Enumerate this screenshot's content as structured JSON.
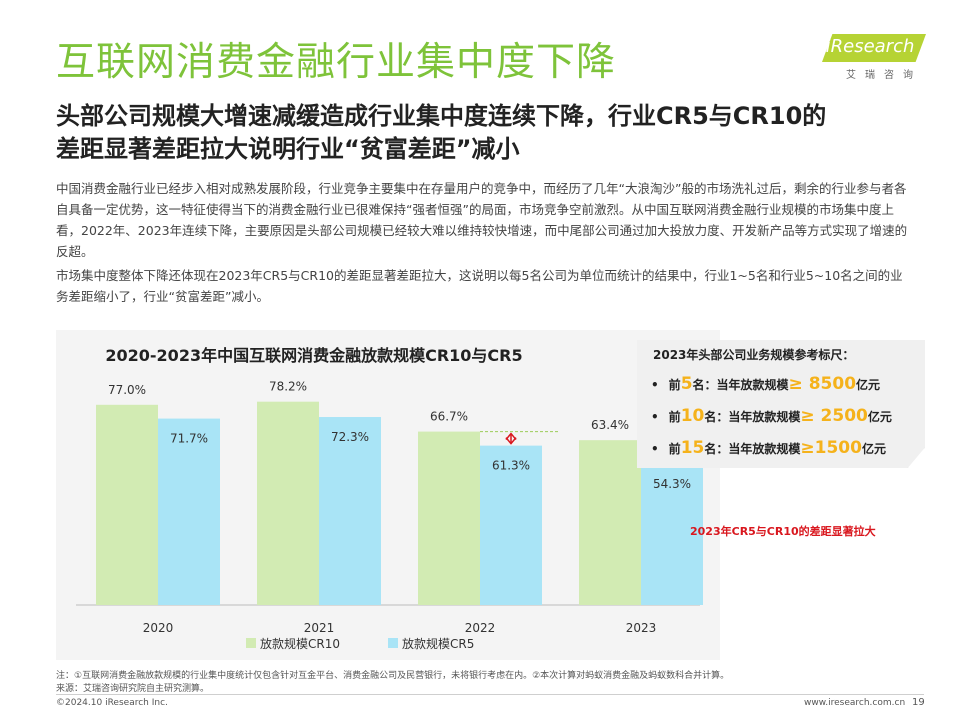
{
  "title": "互联网消费金融行业集中度下降",
  "subtitle_line1": "头部公司规模大增速减缓造成行业集中度连续下降，行业CR5与CR10的",
  "subtitle_line2": "差距显著差距拉大说明行业“贫富差距”减小",
  "paragraph1": "中国消费金融行业已经步入相对成熟发展阶段，行业竞争主要集中在存量用户的竞争中，而经历了几年“大浪淘沙”般的市场洗礼过后，剩余的行业参与者各自具备一定优势，这一特征使得当下的消费金融行业已很难保持“强者恒强”的局面，市场竞争空前激烈。从中国互联网消费金融行业规模的市场集中度上看，2022年、2023年连续下降，主要原因是头部公司规模已经较大难以维持较快增速，而中尾部公司通过加大投放力度、开发新产品等方式实现了增速的反超。",
  "paragraph2": "市场集中度整体下降还体现在2023年CR5与CR10的差距显著差距拉大，这说明以每5名公司为单位而统计的结果中，行业1~5名和行业5~10名之间的业务差距缩小了，行业“贫富差距”减小。",
  "logo": {
    "text": "iResearch",
    "cn": "艾瑞咨询"
  },
  "chart_data": {
    "type": "bar",
    "title": "2020-2023年中国互联网消费金融放款规模CR10与CR5",
    "categories": [
      "2020",
      "2021",
      "2022",
      "2023"
    ],
    "series": [
      {
        "name": "放款规模CR10",
        "values": [
          77.0,
          78.2,
          66.7,
          63.4
        ],
        "labels": [
          "77.0%",
          "78.2%",
          "66.7%",
          "63.4%"
        ],
        "color": "#d2ebb3"
      },
      {
        "name": "放款规模CR5",
        "values": [
          71.7,
          72.3,
          61.3,
          54.3
        ],
        "labels": [
          "71.7%",
          "72.3%",
          "61.3%",
          "54.3%"
        ],
        "color": "#a9e4f6"
      }
    ],
    "ylim": [
      0,
      100
    ],
    "grid": false,
    "legend": "bottom",
    "annotation": "2023年CR5与CR10的差距显著拉大",
    "annotation_color": "#d9171e",
    "gap_markers": [
      "2022",
      "2023"
    ]
  },
  "reference": {
    "title": "2023年头部公司业务规模参考标尺：",
    "items": [
      {
        "bullet": "•",
        "pre": "前",
        "num": "5",
        "mid": "名：当年放款规模",
        "ge": "≥ ",
        "amount": "8500",
        "unit": "亿元"
      },
      {
        "bullet": "•",
        "pre": "前",
        "num": "10",
        "mid": "名：当年放款规模",
        "ge": "≥ ",
        "amount": "2500",
        "unit": "亿元"
      },
      {
        "bullet": "•",
        "pre": "前",
        "num": "15",
        "mid": "名：当年放款规模",
        "ge": "≥",
        "amount": "1500",
        "unit": "亿元"
      }
    ],
    "accent_color": "#f5b21b"
  },
  "footer": {
    "note": "注：①互联网消费金融放款规模的行业集中度统计仅包含针对互金平台、消费金融公司及民营银行，未将银行考虑在内。②本次计算对蚂蚁消费金融及蚂蚁数科合并计算。",
    "source": "来源：艾瑞咨询研究院自主研究测算。",
    "copyright": "©2024.10 iResearch Inc.",
    "url": "www.iresearch.com.cn",
    "page": "19"
  }
}
